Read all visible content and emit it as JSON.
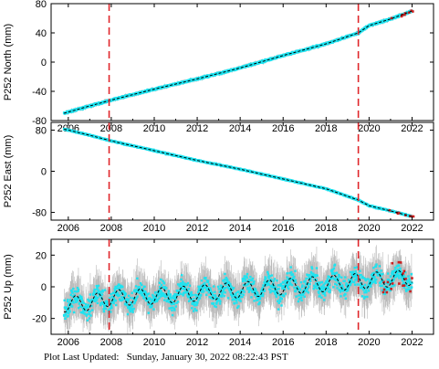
{
  "footer": {
    "label": "Plot Last Updated:",
    "timestamp": "Sunday, January 30, 2022 08:22:43 PST"
  },
  "colors": {
    "data": "#1ee3f0",
    "error_bar": "#b9b9b9",
    "model": "#000000",
    "event_line": "#e0262b",
    "outlier": "#cc1f1f"
  },
  "chart_data": [
    {
      "type": "scatter",
      "ylabel": "P252 North (mm)",
      "xlim": [
        2005.2,
        2023.0
      ],
      "ylim": [
        -80,
        80
      ],
      "xticks": [
        2006,
        2008,
        2010,
        2012,
        2014,
        2016,
        2018,
        2020,
        2022
      ],
      "yticks": [
        -80,
        -40,
        0,
        40,
        80
      ],
      "series": [
        {
          "x": [
            2005.8,
            2007,
            2008,
            2010,
            2012,
            2014,
            2016,
            2018,
            2019.5,
            2020,
            2021,
            2022
          ],
          "y": [
            -70,
            -60,
            -52,
            -37,
            -23,
            -8,
            9,
            25,
            40,
            50,
            59,
            70
          ]
        }
      ],
      "event_lines": [
        2007.9,
        2019.5
      ]
    },
    {
      "type": "scatter",
      "ylabel": "P252 East (mm)",
      "xlim": [
        2005.2,
        2023.0
      ],
      "ylim": [
        -95,
        95
      ],
      "xticks": [
        2006,
        2008,
        2010,
        2012,
        2014,
        2016,
        2018,
        2020,
        2022
      ],
      "yticks": [
        -80,
        0,
        80
      ],
      "series": [
        {
          "x": [
            2005.8,
            2007,
            2008,
            2010,
            2012,
            2014,
            2016,
            2018,
            2019.5,
            2020,
            2021,
            2022
          ],
          "y": [
            82,
            70,
            59,
            40,
            21,
            4,
            -15,
            -34,
            -56,
            -67,
            -77,
            -88
          ]
        }
      ],
      "event_lines": [
        2007.9,
        2019.5
      ]
    },
    {
      "type": "scatter",
      "ylabel": "P252 Up (mm)",
      "xlim": [
        2005.2,
        2023.0
      ],
      "ylim": [
        -30,
        30
      ],
      "xticks": [
        2006,
        2008,
        2010,
        2012,
        2014,
        2016,
        2018,
        2020,
        2022
      ],
      "yticks": [
        -20,
        0,
        20
      ],
      "series": [
        {
          "x": [
            2005.8,
            2007,
            2008,
            2010,
            2012,
            2014,
            2016,
            2018,
            2020,
            2022
          ],
          "y": [
            -11,
            -10,
            -7,
            -6,
            -4,
            -2,
            0,
            2,
            4,
            6
          ]
        }
      ],
      "seasonal_amplitude_mm": 5,
      "scatter_mm": 6,
      "event_lines": [
        2007.9,
        2019.5
      ]
    }
  ]
}
